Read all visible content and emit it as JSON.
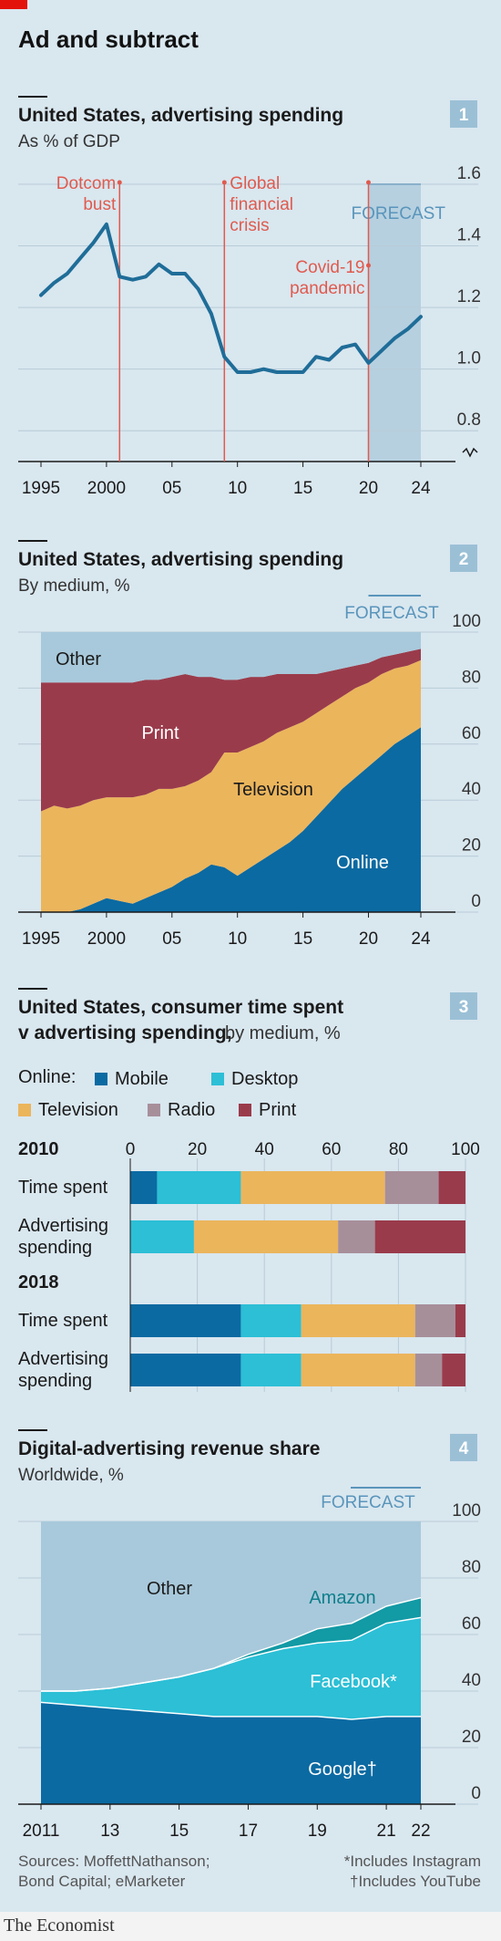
{
  "headline": "Ad and subtract",
  "footer": {
    "logo": "The Economist",
    "sources": [
      "Sources: MoffettNathanson;",
      "Bond Capital; eMarketer"
    ],
    "notes": [
      "*Includes Instagram",
      "†Includes YouTube"
    ]
  },
  "colors": {
    "background": "#d9e7ef",
    "line": "#1f6d98",
    "mobile": "#0b6aa2",
    "desktop": "#2cbfd6",
    "television": "#ebb55c",
    "radio": "#a78f9a",
    "print": "#9a3b4b",
    "other": "#a8c9db",
    "forecast": "#b6d0e0",
    "event": "#e05a4e",
    "brand": "#e3120b"
  },
  "chart_data": [
    {
      "id": 1,
      "type": "line",
      "title": "United States, advertising spending",
      "subtitle": "As % of GDP",
      "badge": "1",
      "forecast_label": "FORECAST",
      "forecast_from": 2020,
      "x": [
        1995,
        1996,
        1997,
        1998,
        1999,
        2000,
        2001,
        2002,
        2003,
        2004,
        2005,
        2006,
        2007,
        2008,
        2009,
        2010,
        2011,
        2012,
        2013,
        2014,
        2015,
        2016,
        2017,
        2018,
        2019,
        2020,
        2021,
        2022,
        2023,
        2024
      ],
      "values": [
        1.24,
        1.28,
        1.31,
        1.36,
        1.41,
        1.47,
        1.3,
        1.29,
        1.3,
        1.34,
        1.31,
        1.31,
        1.26,
        1.18,
        1.04,
        0.99,
        0.99,
        1.0,
        0.99,
        0.99,
        0.99,
        1.04,
        1.03,
        1.07,
        1.08,
        1.02,
        1.06,
        1.1,
        1.13,
        1.17
      ],
      "ylim": [
        0.7,
        1.6
      ],
      "yticks": [
        0.8,
        1.0,
        1.2,
        1.4,
        1.6
      ],
      "ytick_labels": [
        "0.8",
        "1.0",
        "1.2",
        "1.4",
        "1.6"
      ],
      "xticks": [
        1995,
        2000,
        2005,
        2010,
        2015,
        2020,
        2024
      ],
      "xtick_labels": [
        "1995",
        "2000",
        "05",
        "10",
        "15",
        "20",
        "24"
      ],
      "events": [
        {
          "year": 2001,
          "lines": [
            "Dotcom",
            "bust"
          ]
        },
        {
          "year": 2009,
          "lines": [
            "Global",
            "financial",
            "crisis"
          ]
        },
        {
          "year": 2020,
          "lines": [
            "Covid-19",
            "pandemic"
          ]
        }
      ]
    },
    {
      "id": 2,
      "type": "area",
      "title": "United States, advertising spending",
      "subtitle": "By medium, %",
      "badge": "2",
      "forecast_label": "FORECAST",
      "forecast_from": 2020,
      "x": [
        1995,
        1996,
        1997,
        1998,
        1999,
        2000,
        2001,
        2002,
        2003,
        2004,
        2005,
        2006,
        2007,
        2008,
        2009,
        2010,
        2011,
        2012,
        2013,
        2014,
        2015,
        2016,
        2017,
        2018,
        2019,
        2020,
        2021,
        2022,
        2023,
        2024
      ],
      "series": [
        {
          "name": "Online",
          "values": [
            0,
            0,
            0,
            1,
            3,
            5,
            4,
            3,
            5,
            7,
            9,
            12,
            14,
            17,
            16,
            13,
            16,
            19,
            22,
            25,
            29,
            34,
            39,
            44,
            48,
            52,
            56,
            60,
            63,
            66
          ]
        },
        {
          "name": "Television",
          "values": [
            36,
            38,
            37,
            37,
            37,
            36,
            37,
            38,
            37,
            37,
            35,
            33,
            33,
            33,
            41,
            44,
            43,
            42,
            42,
            41,
            39,
            37,
            35,
            33,
            32,
            30,
            29,
            27,
            25,
            24
          ]
        },
        {
          "name": "Print",
          "values": [
            46,
            44,
            45,
            44,
            42,
            41,
            41,
            41,
            41,
            39,
            40,
            40,
            37,
            34,
            26,
            26,
            25,
            23,
            21,
            19,
            17,
            14,
            12,
            10,
            8,
            7,
            6,
            5,
            5,
            4
          ]
        },
        {
          "name": "Other",
          "values": [
            18,
            18,
            18,
            18,
            18,
            18,
            18,
            18,
            17,
            17,
            16,
            15,
            16,
            16,
            17,
            17,
            16,
            16,
            15,
            15,
            15,
            15,
            14,
            13,
            12,
            11,
            9,
            8,
            7,
            6
          ]
        }
      ],
      "ylim": [
        0,
        100
      ],
      "yticks": [
        0,
        20,
        40,
        60,
        80,
        100
      ],
      "ytick_labels": [
        "0",
        "20",
        "40",
        "60",
        "80",
        "100"
      ],
      "xticks": [
        1995,
        2000,
        2005,
        2010,
        2015,
        2020,
        2024
      ],
      "xtick_labels": [
        "1995",
        "2000",
        "05",
        "10",
        "15",
        "20",
        "24"
      ]
    },
    {
      "id": 3,
      "type": "bar",
      "orientation": "horizontal-stacked",
      "title_lines": [
        "United States, consumer time spent",
        "v advertising spending,"
      ],
      "title_suffix": "by medium, %",
      "badge": "3",
      "legend_prefix": "Online:",
      "legend": [
        "Mobile",
        "Desktop",
        "Television",
        "Radio",
        "Print"
      ],
      "axis_ticks": [
        "0",
        "20",
        "40",
        "60",
        "80",
        "100"
      ],
      "xlim": [
        0,
        100
      ],
      "groups": [
        {
          "year": "2010",
          "rows": [
            {
              "label": [
                "Time spent"
              ],
              "values": [
                8,
                25,
                43,
                16,
                8
              ]
            },
            {
              "label": [
                "Advertising",
                "spending"
              ],
              "values": [
                0,
                19,
                43,
                11,
                27
              ]
            }
          ]
        },
        {
          "year": "2018",
          "rows": [
            {
              "label": [
                "Time spent"
              ],
              "values": [
                33,
                18,
                34,
                12,
                3
              ]
            },
            {
              "label": [
                "Advertising",
                "spending"
              ],
              "values": [
                33,
                18,
                34,
                8,
                7
              ]
            }
          ]
        }
      ]
    },
    {
      "id": 4,
      "type": "area",
      "title": "Digital-advertising revenue share",
      "subtitle": "Worldwide, %",
      "badge": "4",
      "forecast_label": "FORECAST",
      "forecast_from": 2020,
      "x": [
        2011,
        2012,
        2013,
        2014,
        2015,
        2016,
        2017,
        2018,
        2019,
        2020,
        2021,
        2022
      ],
      "series": [
        {
          "name": "Google†",
          "values": [
            36,
            35,
            34,
            33,
            32,
            31,
            31,
            31,
            31,
            30,
            31,
            31
          ]
        },
        {
          "name": "Facebook*",
          "values": [
            4,
            5,
            7,
            10,
            13,
            17,
            21,
            24,
            26,
            28,
            33,
            35
          ]
        },
        {
          "name": "Amazon",
          "values": [
            0,
            0,
            0,
            0,
            0,
            0,
            1,
            2,
            5,
            6,
            6,
            7
          ]
        },
        {
          "name": "Other",
          "values": [
            60,
            60,
            59,
            57,
            55,
            52,
            47,
            43,
            38,
            36,
            30,
            27
          ]
        }
      ],
      "ylim": [
        0,
        100
      ],
      "yticks": [
        0,
        20,
        40,
        60,
        80,
        100
      ],
      "ytick_labels": [
        "0",
        "20",
        "40",
        "60",
        "80",
        "100"
      ],
      "xticks": [
        2011,
        2013,
        2015,
        2017,
        2019,
        2021,
        2022
      ],
      "xtick_labels": [
        "2011",
        "13",
        "15",
        "17",
        "19",
        "21",
        "22"
      ]
    }
  ]
}
